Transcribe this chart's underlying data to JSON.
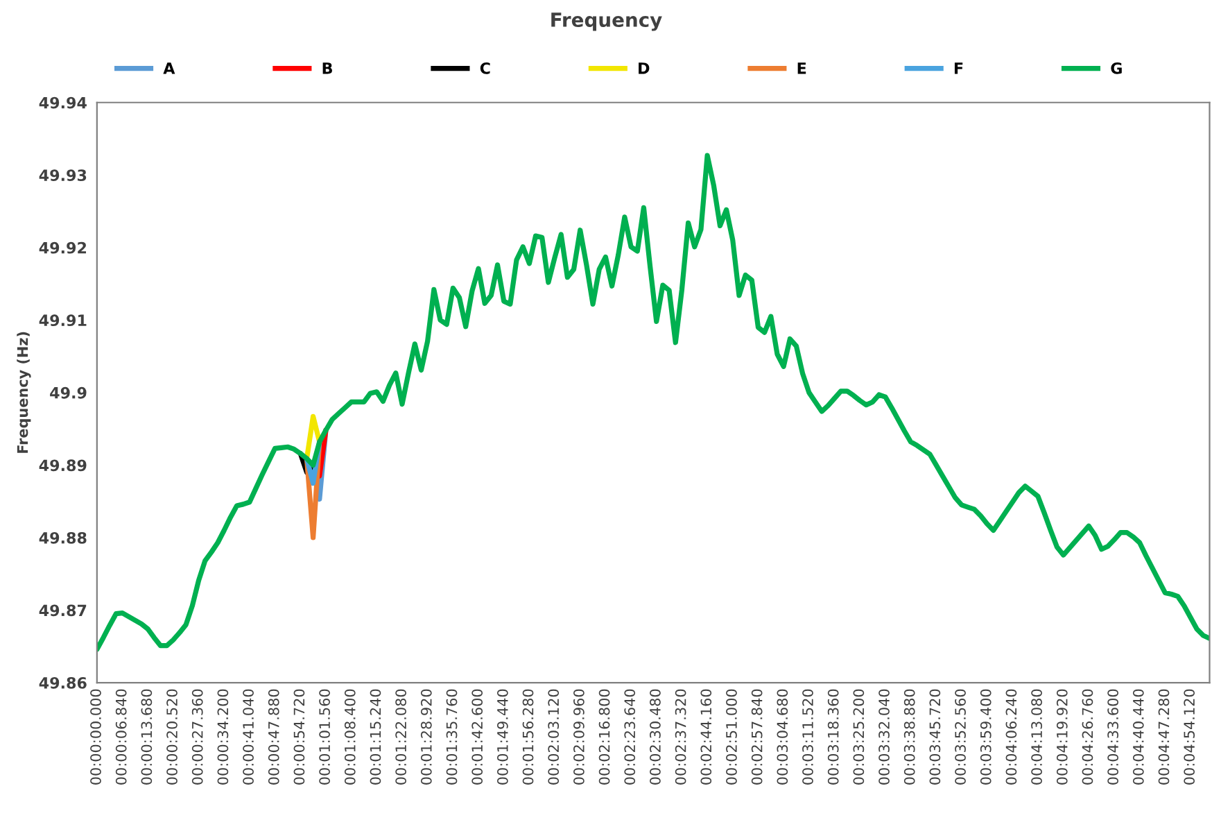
{
  "chart_data": {
    "type": "line",
    "title": "Frequency",
    "ylabel": "Frequency (Hz)",
    "categories": [
      "00:00:00.000",
      null,
      null,
      null,
      "00:00:06.840",
      null,
      null,
      null,
      "00:00:13.680",
      null,
      null,
      null,
      "00:00:20.520",
      null,
      null,
      null,
      "00:00:27.360",
      null,
      null,
      null,
      "00:00:34.200",
      null,
      null,
      null,
      "00:00:41.040",
      null,
      null,
      null,
      "00:00:47.880",
      null,
      null,
      null,
      "00:00:54.720",
      null,
      null,
      null,
      "00:01:01.560",
      null,
      null,
      null,
      "00:01:08.400",
      null,
      null,
      null,
      "00:01:15.240",
      null,
      null,
      null,
      "00:01:22.080",
      null,
      null,
      null,
      "00:01:28.920",
      null,
      null,
      null,
      "00:01:35.760",
      null,
      null,
      null,
      "00:01:42.600",
      null,
      null,
      null,
      "00:01:49.440",
      null,
      null,
      null,
      "00:01:56.280",
      null,
      null,
      null,
      "00:02:03.120",
      null,
      null,
      null,
      "00:02:09.960",
      null,
      null,
      null,
      "00:02:16.800",
      null,
      null,
      null,
      "00:02:23.640",
      null,
      null,
      null,
      "00:02:30.480",
      null,
      null,
      null,
      "00:02:37.320",
      null,
      null,
      null,
      "00:02:44.160",
      null,
      null,
      null,
      "00:02:51.000",
      null,
      null,
      null,
      "00:02:57.840",
      null,
      null,
      null,
      "00:03:04.680",
      null,
      null,
      null,
      "00:03:11.520",
      null,
      null,
      null,
      "00:03:18.360",
      null,
      null,
      null,
      "00:03:25.200",
      null,
      null,
      null,
      "00:03:32.040",
      null,
      null,
      null,
      "00:03:38.880",
      null,
      null,
      null,
      "00:03:45.720",
      null,
      null,
      null,
      "00:03:52.560",
      null,
      null,
      null,
      "00:03:59.400",
      null,
      null,
      null,
      "00:04:06.240",
      null,
      null,
      null,
      "00:04:13.080",
      null,
      null,
      null,
      "00:04:19.920",
      null,
      null,
      null,
      "00:04:26.760",
      null,
      null,
      null,
      "00:04:33.600",
      null,
      null,
      null,
      "00:04:40.440",
      null,
      null,
      null,
      "00:04:47.280",
      null,
      null,
      null,
      "00:04:54.120",
      null,
      null,
      null
    ],
    "series": [
      {
        "name": "A",
        "color": "#5b9bd5",
        "values": [
          null,
          null,
          null,
          null,
          null,
          null,
          null,
          null,
          null,
          null,
          null,
          null,
          null,
          null,
          null,
          null,
          null,
          null,
          null,
          null,
          null,
          null,
          null,
          null,
          null,
          null,
          null,
          null,
          null,
          null,
          null,
          null,
          null,
          null,
          49.89,
          49.8853,
          49.8948,
          null,
          null,
          null,
          null,
          null,
          null,
          null,
          null,
          null,
          null,
          null,
          null,
          null,
          null,
          null,
          null,
          null,
          null,
          null,
          null,
          null,
          null,
          null,
          null,
          null,
          null,
          null,
          null,
          null,
          null,
          null,
          null,
          null,
          null,
          null,
          null,
          null,
          null,
          null,
          null,
          null,
          null,
          null,
          null,
          null,
          null,
          null,
          null,
          null,
          null,
          null,
          null,
          null,
          null,
          null,
          null,
          null,
          null,
          null,
          null,
          null,
          null,
          null,
          null,
          null,
          null,
          null,
          null,
          null,
          null,
          null,
          null,
          null,
          null,
          null,
          null,
          null,
          null,
          null,
          null,
          null,
          null,
          null,
          null,
          null,
          null,
          null,
          null,
          null,
          null,
          null,
          null,
          null,
          null,
          null,
          null,
          null,
          null,
          null,
          null,
          null,
          null,
          null,
          null,
          null,
          null,
          null,
          null,
          null,
          null,
          null,
          null,
          null,
          null,
          null,
          null,
          null,
          null,
          null,
          null,
          null,
          null,
          null,
          null,
          null,
          null,
          null,
          null,
          null,
          null,
          null,
          null,
          null,
          null,
          null,
          null,
          null,
          null,
          null
        ]
      },
      {
        "name": "B",
        "color": "#ff0000",
        "values": [
          null,
          null,
          null,
          null,
          null,
          null,
          null,
          null,
          null,
          null,
          null,
          null,
          null,
          null,
          null,
          null,
          null,
          null,
          null,
          null,
          null,
          null,
          null,
          null,
          null,
          null,
          null,
          null,
          null,
          null,
          null,
          null,
          null,
          null,
          49.89,
          49.8885,
          49.8948,
          null,
          null,
          null,
          null,
          null,
          null,
          null,
          null,
          null,
          null,
          null,
          null,
          null,
          null,
          null,
          null,
          null,
          null,
          null,
          null,
          null,
          null,
          null,
          null,
          null,
          null,
          null,
          null,
          null,
          null,
          null,
          null,
          null,
          null,
          null,
          null,
          null,
          null,
          null,
          null,
          null,
          null,
          null,
          null,
          null,
          null,
          null,
          null,
          null,
          null,
          null,
          null,
          null,
          null,
          null,
          null,
          null,
          null,
          null,
          null,
          null,
          null,
          null,
          null,
          null,
          null,
          null,
          null,
          null,
          null,
          null,
          null,
          null,
          null,
          null,
          null,
          null,
          null,
          null,
          null,
          null,
          null,
          null,
          null,
          null,
          null,
          null,
          null,
          null,
          null,
          null,
          null,
          null,
          null,
          null,
          null,
          null,
          null,
          null,
          null,
          null,
          null,
          null,
          null,
          null,
          null,
          null,
          null,
          null,
          null,
          null,
          null,
          null,
          null,
          null,
          null,
          null,
          null,
          null,
          null,
          null,
          null,
          null,
          null,
          null,
          null,
          null,
          null,
          null,
          null,
          null,
          null,
          null,
          null,
          null,
          null,
          null,
          null,
          null
        ]
      },
      {
        "name": "C",
        "color": "#000000",
        "values": [
          null,
          null,
          null,
          null,
          null,
          null,
          null,
          null,
          null,
          null,
          null,
          null,
          null,
          null,
          null,
          null,
          null,
          null,
          null,
          null,
          null,
          null,
          null,
          null,
          null,
          null,
          null,
          null,
          null,
          null,
          null,
          null,
          49.8916,
          49.889,
          49.89,
          null,
          null,
          null,
          null,
          null,
          null,
          null,
          null,
          null,
          null,
          null,
          null,
          null,
          null,
          null,
          null,
          null,
          null,
          null,
          null,
          null,
          null,
          null,
          null,
          null,
          null,
          null,
          null,
          null,
          null,
          null,
          null,
          null,
          null,
          null,
          null,
          null,
          null,
          null,
          null,
          null,
          null,
          null,
          null,
          null,
          null,
          null,
          null,
          null,
          null,
          null,
          null,
          null,
          null,
          null,
          null,
          null,
          null,
          null,
          null,
          null,
          null,
          null,
          null,
          null,
          null,
          null,
          null,
          null,
          null,
          null,
          null,
          null,
          null,
          null,
          null,
          null,
          null,
          null,
          null,
          null,
          null,
          null,
          null,
          null,
          null,
          null,
          null,
          null,
          null,
          null,
          null,
          null,
          null,
          null,
          null,
          null,
          null,
          null,
          null,
          null,
          null,
          null,
          null,
          null,
          null,
          null,
          null,
          null,
          null,
          null,
          null,
          null,
          null,
          null,
          null,
          null,
          null,
          null,
          null,
          null,
          null,
          null,
          null,
          null,
          null,
          null,
          null,
          null,
          null,
          null,
          null,
          null,
          null,
          null,
          null,
          null,
          null,
          null,
          null,
          null
        ]
      },
      {
        "name": "D",
        "color": "#f2e600",
        "values": [
          null,
          null,
          null,
          null,
          null,
          null,
          null,
          null,
          null,
          null,
          null,
          null,
          null,
          null,
          null,
          null,
          null,
          null,
          null,
          null,
          null,
          null,
          null,
          null,
          null,
          null,
          null,
          null,
          null,
          null,
          null,
          null,
          null,
          49.8909,
          49.8967,
          49.8932,
          null,
          null,
          null,
          null,
          null,
          null,
          null,
          null,
          null,
          null,
          null,
          null,
          null,
          null,
          null,
          null,
          null,
          null,
          null,
          null,
          null,
          null,
          null,
          null,
          null,
          null,
          null,
          null,
          null,
          null,
          null,
          null,
          null,
          null,
          null,
          null,
          null,
          null,
          null,
          null,
          null,
          null,
          null,
          null,
          null,
          null,
          null,
          null,
          null,
          null,
          null,
          null,
          null,
          null,
          null,
          null,
          null,
          null,
          null,
          null,
          null,
          null,
          null,
          null,
          null,
          null,
          null,
          null,
          null,
          null,
          null,
          null,
          null,
          null,
          null,
          null,
          null,
          null,
          null,
          null,
          null,
          null,
          null,
          null,
          null,
          null,
          null,
          null,
          null,
          null,
          null,
          null,
          null,
          null,
          null,
          null,
          null,
          null,
          null,
          null,
          null,
          null,
          null,
          null,
          null,
          null,
          null,
          null,
          null,
          null,
          null,
          null,
          null,
          null,
          null,
          null,
          null,
          null,
          null,
          null,
          null,
          null,
          null,
          null,
          null,
          null,
          null,
          null,
          null,
          null,
          null,
          null,
          null,
          null,
          null,
          null,
          null,
          null,
          null,
          null
        ]
      },
      {
        "name": "E",
        "color": "#ed7d31",
        "values": [
          null,
          null,
          null,
          null,
          null,
          null,
          null,
          null,
          null,
          null,
          null,
          null,
          null,
          null,
          null,
          null,
          null,
          null,
          null,
          null,
          null,
          null,
          null,
          null,
          null,
          null,
          null,
          null,
          null,
          null,
          null,
          null,
          null,
          49.8909,
          49.88,
          49.8932,
          null,
          null,
          null,
          null,
          null,
          null,
          null,
          null,
          null,
          null,
          null,
          null,
          null,
          null,
          null,
          null,
          null,
          null,
          null,
          null,
          null,
          null,
          null,
          null,
          null,
          null,
          null,
          null,
          null,
          null,
          null,
          null,
          null,
          null,
          null,
          null,
          null,
          null,
          null,
          null,
          null,
          null,
          null,
          null,
          null,
          null,
          null,
          null,
          null,
          null,
          null,
          null,
          null,
          null,
          null,
          null,
          null,
          null,
          null,
          null,
          null,
          null,
          null,
          null,
          null,
          null,
          null,
          null,
          null,
          null,
          null,
          null,
          null,
          null,
          null,
          null,
          null,
          null,
          null,
          null,
          null,
          null,
          null,
          null,
          null,
          null,
          null,
          null,
          null,
          null,
          null,
          null,
          null,
          null,
          null,
          null,
          null,
          null,
          null,
          null,
          null,
          null,
          null,
          null,
          null,
          null,
          null,
          null,
          null,
          null,
          null,
          null,
          null,
          null,
          null,
          null,
          null,
          null,
          null,
          null,
          null,
          null,
          null,
          null,
          null,
          null,
          null,
          null,
          null,
          null,
          null,
          null,
          null,
          null,
          null,
          null,
          null,
          null,
          null,
          null
        ]
      },
      {
        "name": "F",
        "color": "#4aa3df",
        "values": [
          null,
          null,
          null,
          null,
          null,
          null,
          null,
          null,
          null,
          null,
          null,
          null,
          null,
          null,
          null,
          null,
          null,
          null,
          null,
          null,
          null,
          null,
          null,
          null,
          null,
          null,
          null,
          null,
          null,
          null,
          null,
          null,
          null,
          49.8909,
          49.8875,
          49.8932,
          null,
          null,
          null,
          null,
          null,
          null,
          null,
          null,
          null,
          null,
          null,
          null,
          null,
          null,
          null,
          null,
          null,
          null,
          null,
          null,
          null,
          null,
          null,
          null,
          null,
          null,
          null,
          null,
          null,
          null,
          null,
          null,
          null,
          null,
          null,
          null,
          null,
          null,
          null,
          null,
          null,
          null,
          null,
          null,
          null,
          null,
          null,
          null,
          null,
          null,
          null,
          null,
          null,
          null,
          null,
          null,
          null,
          null,
          null,
          null,
          null,
          null,
          null,
          null,
          null,
          null,
          null,
          null,
          null,
          null,
          null,
          null,
          null,
          null,
          null,
          null,
          null,
          null,
          null,
          null,
          null,
          null,
          null,
          null,
          null,
          null,
          null,
          null,
          null,
          null,
          null,
          null,
          null,
          null,
          null,
          null,
          null,
          null,
          null,
          null,
          null,
          null,
          null,
          null,
          null,
          null,
          null,
          null,
          null,
          null,
          null,
          null,
          null,
          null,
          null,
          null,
          null,
          null,
          null,
          null,
          null,
          null,
          null,
          null,
          null,
          null,
          null,
          null,
          null,
          null,
          null,
          null,
          null,
          null,
          null,
          null,
          null,
          null,
          null,
          null
        ]
      },
      {
        "name": "G",
        "color": "#00b050",
        "values": [
          49.8646,
          49.8662,
          49.8679,
          49.8695,
          49.8696,
          49.8691,
          49.8686,
          49.8681,
          49.8674,
          49.8662,
          49.8651,
          49.8651,
          49.8659,
          49.8669,
          49.868,
          49.8706,
          49.8741,
          49.8768,
          49.878,
          49.8793,
          49.881,
          49.8828,
          49.8844,
          49.8846,
          49.8849,
          49.8868,
          49.8887,
          49.8905,
          49.8923,
          49.8924,
          49.8925,
          49.8922,
          49.8916,
          49.8909,
          49.89,
          49.8932,
          49.8948,
          49.8963,
          49.8971,
          49.8979,
          49.8987,
          49.8987,
          49.8987,
          49.8999,
          49.9001,
          49.8988,
          49.901,
          49.9027,
          49.8984,
          49.9027,
          49.9067,
          49.9031,
          49.9071,
          49.9142,
          49.91,
          49.9094,
          49.9144,
          49.9131,
          49.9091,
          49.914,
          49.9171,
          49.9123,
          49.9134,
          49.9176,
          49.9126,
          49.9122,
          49.9183,
          49.9201,
          49.9178,
          49.9216,
          49.9214,
          49.9152,
          49.9186,
          49.9218,
          49.9159,
          49.917,
          49.9224,
          49.9176,
          49.9122,
          49.917,
          49.9187,
          49.9147,
          49.919,
          49.9242,
          49.9201,
          49.9195,
          49.9255,
          49.9174,
          49.9098,
          49.9148,
          49.9141,
          49.9069,
          49.9142,
          49.9234,
          49.9201,
          49.9225,
          49.9327,
          49.9286,
          49.923,
          49.9252,
          49.921,
          49.9134,
          49.9162,
          49.9155,
          49.909,
          49.9083,
          49.9105,
          49.9053,
          49.9036,
          49.9074,
          49.9064,
          49.9026,
          49.9,
          49.8987,
          49.8974,
          49.8982,
          49.8992,
          49.9002,
          49.9002,
          49.8996,
          49.8989,
          49.8983,
          49.8987,
          49.8997,
          49.8994,
          49.8979,
          49.8963,
          49.8947,
          49.8932,
          49.8927,
          49.8921,
          49.8915,
          49.89,
          49.8885,
          49.887,
          49.8855,
          49.8845,
          49.8842,
          49.8839,
          49.883,
          49.8819,
          49.881,
          49.8823,
          49.8836,
          49.8849,
          49.8862,
          49.8871,
          49.8864,
          49.8857,
          49.8834,
          49.881,
          49.8787,
          49.8776,
          49.8786,
          49.8796,
          49.8806,
          49.8816,
          49.8803,
          49.8784,
          49.8788,
          49.8797,
          49.8807,
          49.8807,
          49.8801,
          49.8793,
          49.8775,
          49.8758,
          49.8741,
          49.8724,
          49.8722,
          49.8719,
          49.8706,
          49.869,
          49.8674,
          49.8665,
          49.8661
        ]
      }
    ],
    "ylim": [
      49.86,
      49.94
    ],
    "yticks": [
      49.86,
      49.87,
      49.88,
      49.89,
      49.9,
      49.91,
      49.92,
      49.93,
      49.94
    ],
    "grid": false,
    "legend": "top",
    "marker": "none",
    "line_style": "solid"
  }
}
